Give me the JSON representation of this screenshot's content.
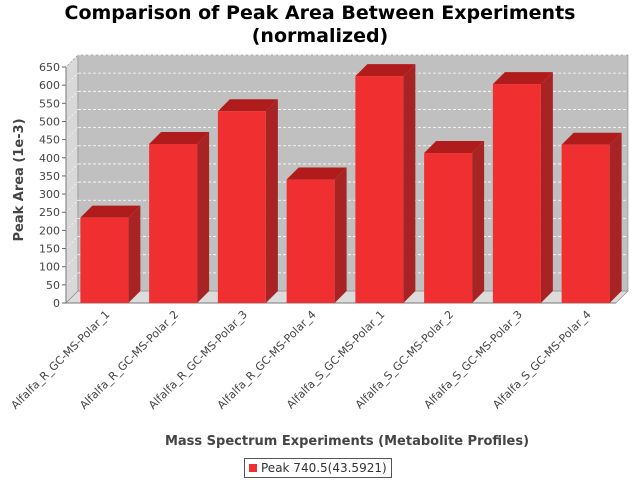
{
  "chart_data": {
    "type": "bar",
    "title": [
      "Comparison of Peak Area Between Experiments",
      "(normalized)"
    ],
    "xlabel": "Mass Spectrum Experiments (Metabolite Profiles)",
    "ylabel": "Peak Area (1e-3)",
    "ylim": [
      0,
      650
    ],
    "yticks": [
      0,
      50,
      100,
      150,
      200,
      250,
      300,
      350,
      400,
      450,
      500,
      550,
      600,
      650
    ],
    "categories": [
      "Alfalfa_R_GC-MS-Polar_1",
      "Alfalfa_R_GC-MS-Polar_2",
      "Alfalfa_R_GC-MS-Polar_3",
      "Alfalfa_R_GC-MS-Polar_4",
      "Alfalfa_S_GC-MS-Polar_1",
      "Alfalfa_S_GC-MS-Polar_2",
      "Alfalfa_S_GC-MS-Polar_3",
      "Alfalfa_S_GC-MS-Polar_4"
    ],
    "series": [
      {
        "name": "Peak 740.5(43.5921)",
        "values": [
          235,
          438,
          528,
          340,
          625,
          413,
          603,
          436
        ],
        "color": "#f03030"
      }
    ],
    "grid": true,
    "legend": "bottom-center",
    "three_d": true
  },
  "colors": {
    "plot_background": "#c0c0c0",
    "bar_front": "#f03030",
    "bar_top": "#b01c1c",
    "bar_side": "#a82424",
    "gridline": "#ffffff"
  }
}
